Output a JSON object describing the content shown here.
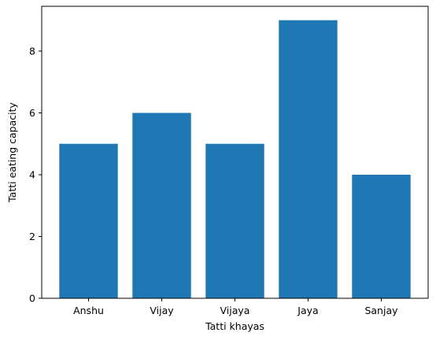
{
  "chart_data": {
    "type": "bar",
    "title": "",
    "xlabel": "Tatti khayas",
    "ylabel": "Tatti eating capacity",
    "categories": [
      "Anshu",
      "Vijay",
      "Vijaya",
      "Jaya",
      "Sanjay"
    ],
    "values": [
      5,
      6,
      5,
      9,
      4
    ],
    "ylim": [
      0,
      9.45
    ],
    "yticks": [
      0,
      2,
      4,
      6,
      8
    ],
    "bar_color": "#1f77b4",
    "grid": false,
    "legend": "none"
  }
}
